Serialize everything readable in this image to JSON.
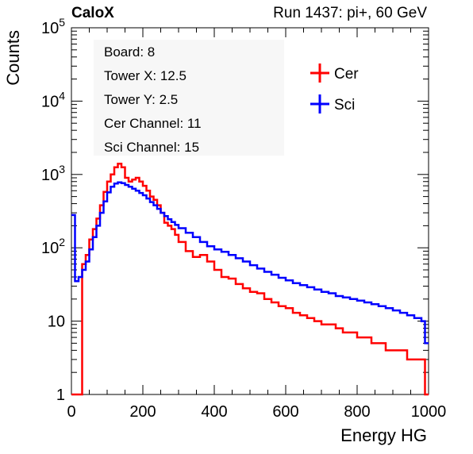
{
  "header": {
    "left": "CaloX",
    "right": "Run 1437: pi+, 60 GeV"
  },
  "info_box": [
    "Board: 8",
    "Tower X: 12.5",
    "Tower Y: 2.5",
    "Cer Channel: 11",
    "Sci Channel: 15"
  ],
  "colors": {
    "cer": "#ff0000",
    "sci": "#0000ff"
  },
  "chart_data": {
    "type": "line",
    "style": "step-histogram",
    "xlabel": "Energy HG",
    "ylabel": "Counts",
    "xlim": [
      0,
      1000
    ],
    "ylim": [
      1,
      100000
    ],
    "yscale": "log",
    "x_ticks": [
      "0",
      "200",
      "400",
      "600",
      "800",
      "1000"
    ],
    "y_ticks": [
      {
        "value": 1,
        "label": "1"
      },
      {
        "value": 10,
        "label": "10"
      },
      {
        "value": 100,
        "label": "10^2"
      },
      {
        "value": 1000,
        "label": "10^3"
      },
      {
        "value": 10000,
        "label": "10^4"
      },
      {
        "value": 100000,
        "label": "10^5"
      }
    ],
    "legend_position": "top-right",
    "series": [
      {
        "name": "Cer",
        "x": [
          0,
          10,
          20,
          30,
          40,
          50,
          60,
          70,
          80,
          90,
          100,
          110,
          120,
          130,
          140,
          150,
          160,
          170,
          180,
          190,
          200,
          210,
          220,
          230,
          240,
          250,
          260,
          270,
          280,
          290,
          300,
          320,
          340,
          360,
          380,
          400,
          420,
          440,
          460,
          480,
          500,
          520,
          540,
          560,
          580,
          600,
          620,
          640,
          660,
          680,
          700,
          720,
          740,
          760,
          780,
          800,
          820,
          840,
          860,
          880,
          900,
          920,
          940,
          960,
          980,
          990
        ],
        "values": [
          1,
          1,
          1,
          60,
          80,
          130,
          180,
          250,
          380,
          580,
          800,
          1000,
          1250,
          1400,
          1250,
          900,
          800,
          850,
          900,
          800,
          700,
          600,
          500,
          450,
          380,
          300,
          220,
          200,
          180,
          150,
          120,
          90,
          75,
          80,
          65,
          50,
          40,
          38,
          32,
          28,
          25,
          24,
          20,
          18,
          16,
          15,
          13,
          12,
          11,
          10,
          9,
          9,
          8,
          7,
          7,
          6,
          6,
          5,
          5,
          4,
          4,
          4,
          3,
          3,
          3,
          1
        ]
      },
      {
        "name": "Sci",
        "x": [
          0,
          10,
          20,
          30,
          40,
          50,
          60,
          70,
          80,
          90,
          100,
          110,
          120,
          130,
          140,
          150,
          160,
          170,
          180,
          190,
          200,
          210,
          220,
          230,
          240,
          250,
          260,
          270,
          280,
          290,
          300,
          320,
          340,
          360,
          380,
          400,
          420,
          440,
          460,
          480,
          500,
          520,
          540,
          560,
          580,
          600,
          620,
          640,
          660,
          680,
          700,
          720,
          740,
          760,
          780,
          800,
          820,
          840,
          860,
          880,
          900,
          920,
          940,
          960,
          980,
          990
        ],
        "values": [
          280,
          35,
          40,
          50,
          65,
          95,
          140,
          200,
          300,
          430,
          570,
          680,
          750,
          780,
          760,
          720,
          680,
          640,
          600,
          560,
          520,
          470,
          420,
          380,
          340,
          300,
          270,
          245,
          225,
          205,
          185,
          160,
          140,
          120,
          105,
          95,
          88,
          80,
          72,
          65,
          58,
          52,
          47,
          43,
          39,
          36,
          33,
          31,
          29,
          27,
          25,
          24,
          22,
          21,
          20,
          19,
          18,
          17,
          16,
          15,
          14,
          13,
          12,
          11,
          10,
          5
        ]
      }
    ]
  }
}
